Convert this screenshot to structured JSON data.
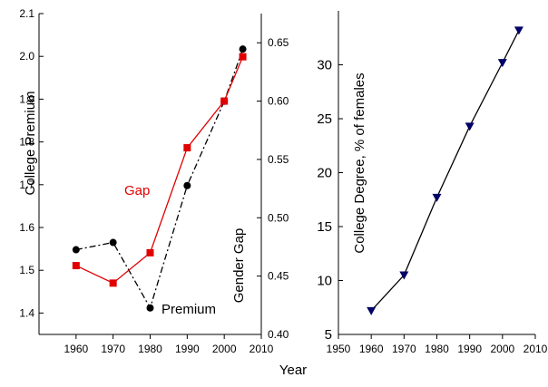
{
  "chart_data": [
    {
      "type": "line",
      "xlabel": "Year",
      "x": [
        1960,
        1970,
        1980,
        1990,
        2000,
        2005
      ],
      "xlim": [
        1950,
        2010
      ],
      "xticks": [
        1960,
        1970,
        1980,
        1990,
        2000,
        2010
      ],
      "y_left": {
        "label": "College Premium",
        "lim": [
          1.35,
          2.1
        ],
        "ticks": [
          "1.4",
          "1.5",
          "1.6",
          "1.7",
          "1.8",
          "1.9",
          "2.0",
          "2.1"
        ]
      },
      "y_right": {
        "label": "Gender Gap",
        "lim": [
          0.4,
          0.675
        ],
        "ticks": [
          "0.40",
          "0.45",
          "0.50",
          "0.55",
          "0.60",
          "0.65"
        ]
      },
      "series": [
        {
          "name": "Premium",
          "axis": "left",
          "color": "#000000",
          "style": "dash-dot",
          "marker": "circle",
          "values": [
            1.548,
            1.565,
            1.412,
            1.698,
            1.895,
            2.017
          ]
        },
        {
          "name": "Gap",
          "axis": "right",
          "color": "#e00000",
          "style": "solid",
          "marker": "square",
          "values": [
            0.459,
            0.444,
            0.47,
            0.56,
            0.6,
            0.638
          ]
        }
      ],
      "annotations": [
        "Gap",
        "Premium"
      ]
    },
    {
      "type": "line",
      "xlabel": "Year",
      "ylabel": "College Degree, % of females",
      "x": [
        1960,
        1970,
        1980,
        1990,
        2000,
        2005
      ],
      "xlim": [
        1950,
        2010
      ],
      "xticks": [
        1950,
        1960,
        1970,
        1980,
        1990,
        2000,
        2010
      ],
      "ylim": [
        5,
        35
      ],
      "yticks": [
        5,
        10,
        15,
        20,
        25,
        30
      ],
      "series": [
        {
          "color": "#000000",
          "marker_color": "#000066",
          "marker": "triangle-down",
          "values": [
            7.2,
            10.5,
            17.7,
            24.3,
            30.2,
            33.2
          ]
        }
      ]
    }
  ]
}
